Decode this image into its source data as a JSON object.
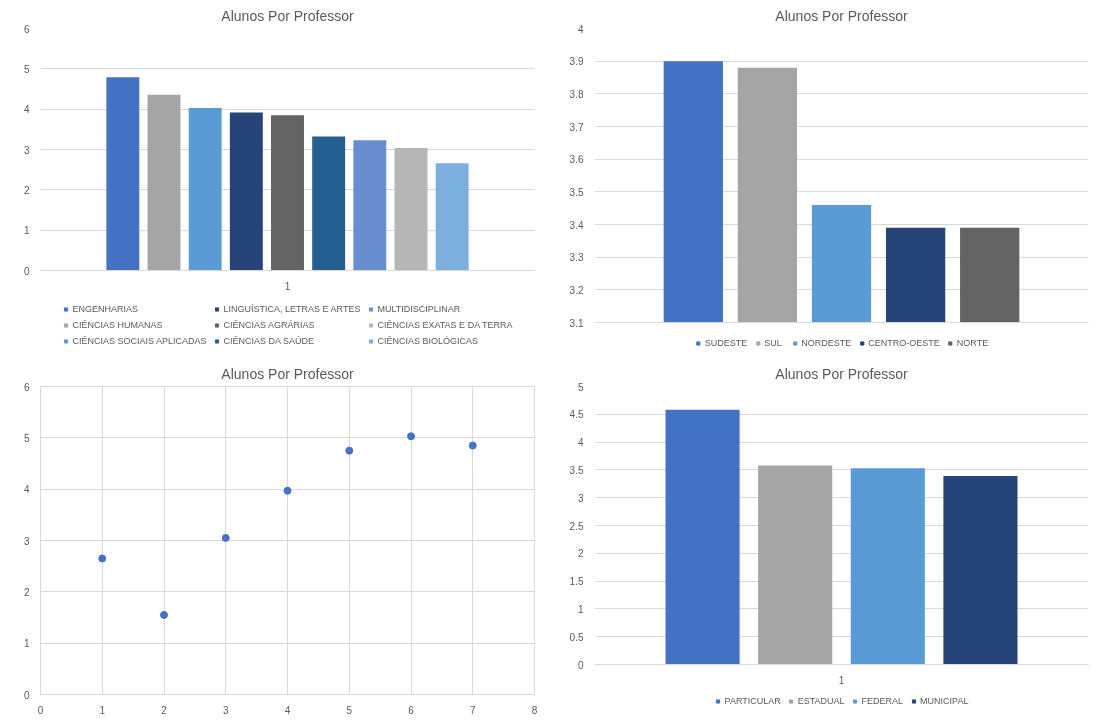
{
  "chart_data": [
    {
      "type": "bar",
      "title": "Alunos Por Professor",
      "categories": [
        "1"
      ],
      "ylim": [
        0,
        6
      ],
      "yticks": [
        0,
        1,
        2,
        3,
        4,
        5,
        6
      ],
      "grid": "y",
      "legend": "bottom",
      "series": [
        {
          "name": "ENGENHARIAS",
          "color": "#4472c4",
          "values": [
            4.79
          ]
        },
        {
          "name": "CIÊNCIAS HUMANAS",
          "color": "#a5a5a5",
          "values": [
            4.36
          ]
        },
        {
          "name": "CIÊNCIAS SOCIAIS APLICADAS",
          "color": "#5b9bd5",
          "values": [
            4.03
          ]
        },
        {
          "name": "LINGUÍSTICA, LETRAS E ARTES",
          "color": "#264478",
          "values": [
            3.92
          ]
        },
        {
          "name": "CIÊNCIAS AGRÁRIAS",
          "color": "#636363",
          "values": [
            3.85
          ]
        },
        {
          "name": "CIÊNCIAS DA SAÚDE",
          "color": "#255e91",
          "values": [
            3.32
          ]
        },
        {
          "name": "MULTIDISCIPLINAR",
          "color": "#698ed0",
          "values": [
            3.23
          ]
        },
        {
          "name": "CIÊNCIAS EXATAS E DA TERRA",
          "color": "#b7b7b7",
          "values": [
            3.04
          ]
        },
        {
          "name": "CIÊNCIAS BIOLÓGICAS",
          "color": "#7cafdd",
          "values": [
            2.66
          ]
        }
      ]
    },
    {
      "type": "bar",
      "title": "Alunos Por Professor",
      "categories": [
        null
      ],
      "ylim": [
        3.1,
        4
      ],
      "yticks": [
        3.1,
        3.2,
        3.3,
        3.4,
        3.5,
        3.6,
        3.7,
        3.8,
        3.9,
        4
      ],
      "grid": "y",
      "legend": "bottom",
      "series": [
        {
          "name": "SUDESTE",
          "color": "#4472c4",
          "values": [
            3.9
          ]
        },
        {
          "name": "SUL",
          "color": "#a5a5a5",
          "values": [
            3.88
          ]
        },
        {
          "name": "NORDESTE",
          "color": "#5b9bd5",
          "values": [
            3.46
          ]
        },
        {
          "name": "CENTRO-OESTE",
          "color": "#264478",
          "values": [
            3.39
          ]
        },
        {
          "name": "NORTE",
          "color": "#636363",
          "values": [
            3.39
          ]
        }
      ]
    },
    {
      "type": "scatter",
      "title": "Alunos Por Professor",
      "xlim": [
        0,
        8
      ],
      "xticks": [
        0,
        1,
        2,
        3,
        4,
        5,
        6,
        7,
        8
      ],
      "ylim": [
        0,
        6
      ],
      "yticks": [
        0,
        1,
        2,
        3,
        4,
        5,
        6
      ],
      "grid": true,
      "marker": "circle",
      "series": [
        {
          "color": "#4472c4",
          "x": [
            1,
            2,
            3,
            4,
            5,
            6,
            7
          ],
          "values": [
            2.65,
            1.55,
            3.05,
            3.97,
            4.75,
            5.03,
            4.85
          ]
        }
      ]
    },
    {
      "type": "bar",
      "title": "Alunos Por Professor",
      "categories": [
        "1"
      ],
      "ylim": [
        0,
        5
      ],
      "yticks": [
        0,
        {
          "value": 0.5,
          "label": "0.5"
        },
        1,
        {
          "value": 1.5,
          "label": "1.5"
        },
        2,
        {
          "value": 2.5,
          "label": "2.5"
        },
        3,
        {
          "value": 3.5,
          "label": "3.5"
        },
        4,
        {
          "value": 4.5,
          "label": "4.5"
        },
        5
      ],
      "grid": "y",
      "legend": "bottom",
      "series": [
        {
          "name": "PARTICULAR",
          "color": "#4472c4",
          "values": [
            4.58
          ]
        },
        {
          "name": "ESTADUAL",
          "color": "#a5a5a5",
          "values": [
            3.58
          ]
        },
        {
          "name": "FEDERAL",
          "color": "#5b9bd5",
          "values": [
            3.53
          ]
        },
        {
          "name": "MUNICIPAL",
          "color": "#264478",
          "values": [
            3.39
          ]
        }
      ]
    }
  ]
}
